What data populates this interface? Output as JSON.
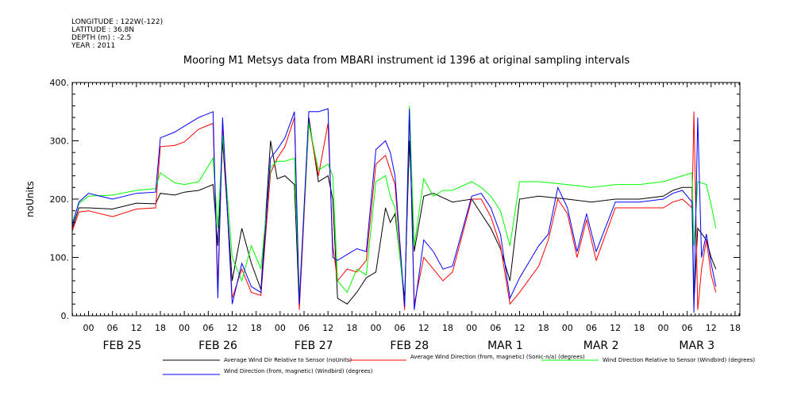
{
  "header": {
    "longitude": "LONGITUDE : 122W(-122)",
    "latitude": "LATITUDE : 36.8N",
    "depth": "DEPTH (m) : -2.5",
    "year": "YEAR : 2011"
  },
  "chart_data": {
    "type": "line",
    "title": "Mooring M1 Metsys data from MBARI instrument id 1396 at original sampling intervals",
    "xlabel": "",
    "ylabel": "noUnits",
    "ylim": [
      0,
      400
    ],
    "xlim": [
      -0.17,
      6.8
    ],
    "y_ticks": [
      0,
      100,
      200,
      300,
      400
    ],
    "y_tick_labels": [
      "0.",
      "100.",
      "200.",
      "300.",
      "400."
    ],
    "hour_labels": [
      "00",
      "06",
      "12",
      "18",
      "00",
      "06",
      "12",
      "18",
      "00",
      "06",
      "12",
      "18",
      "00",
      "06",
      "12",
      "18",
      "00",
      "06",
      "12",
      "18",
      "00",
      "06",
      "12",
      "18",
      "00",
      "06",
      "12",
      "18"
    ],
    "day_labels": [
      "FEB 25",
      "FEB 26",
      "FEB 27",
      "FEB 28",
      "MAR  1",
      "MAR  2",
      "MAR  3"
    ],
    "grid": false,
    "legend_position": "bottom",
    "x_units": "days since FEB 25 00:00 (2011)",
    "series": [
      {
        "name": "Average Wind Dir Relative to Sensor (noUnits)",
        "color": "#000000",
        "points": [
          [
            -0.17,
            150
          ],
          [
            -0.1,
            185
          ],
          [
            0,
            185
          ],
          [
            0.25,
            183
          ],
          [
            0.5,
            193
          ],
          [
            0.7,
            192
          ],
          [
            0.75,
            210
          ],
          [
            0.9,
            207
          ],
          [
            1.0,
            212
          ],
          [
            1.15,
            215
          ],
          [
            1.3,
            225
          ],
          [
            1.35,
            120
          ],
          [
            1.4,
            300
          ],
          [
            1.5,
            60
          ],
          [
            1.6,
            150
          ],
          [
            1.7,
            90
          ],
          [
            1.8,
            45
          ],
          [
            1.9,
            300
          ],
          [
            1.97,
            235
          ],
          [
            2.05,
            240
          ],
          [
            2.15,
            225
          ],
          [
            2.2,
            15
          ],
          [
            2.3,
            340
          ],
          [
            2.4,
            230
          ],
          [
            2.5,
            240
          ],
          [
            2.55,
            200
          ],
          [
            2.6,
            30
          ],
          [
            2.7,
            20
          ],
          [
            2.8,
            40
          ],
          [
            2.9,
            65
          ],
          [
            3.0,
            75
          ],
          [
            3.1,
            185
          ],
          [
            3.15,
            160
          ],
          [
            3.2,
            175
          ],
          [
            3.3,
            30
          ],
          [
            3.35,
            300
          ],
          [
            3.4,
            110
          ],
          [
            3.5,
            205
          ],
          [
            3.6,
            210
          ],
          [
            3.8,
            195
          ],
          [
            4.0,
            200
          ],
          [
            4.1,
            175
          ],
          [
            4.2,
            150
          ],
          [
            4.3,
            115
          ],
          [
            4.4,
            60
          ],
          [
            4.5,
            200
          ],
          [
            4.7,
            205
          ],
          [
            5.0,
            200
          ],
          [
            5.25,
            195
          ],
          [
            5.5,
            200
          ],
          [
            5.75,
            200
          ],
          [
            6.0,
            205
          ],
          [
            6.1,
            215
          ],
          [
            6.2,
            220
          ],
          [
            6.3,
            220
          ],
          [
            6.32,
            20
          ],
          [
            6.36,
            150
          ],
          [
            6.45,
            130
          ],
          [
            6.5,
            100
          ],
          [
            6.55,
            80
          ]
        ]
      },
      {
        "name": "Average Wind Direction (from, magnetic) (Sonic-n/a) (degrees)",
        "color": "#ff0000",
        "points": [
          [
            -0.17,
            145
          ],
          [
            -0.1,
            178
          ],
          [
            0,
            180
          ],
          [
            0.25,
            170
          ],
          [
            0.5,
            183
          ],
          [
            0.7,
            185
          ],
          [
            0.75,
            290
          ],
          [
            0.9,
            292
          ],
          [
            1.0,
            298
          ],
          [
            1.15,
            320
          ],
          [
            1.3,
            330
          ],
          [
            1.35,
            50
          ],
          [
            1.4,
            320
          ],
          [
            1.5,
            30
          ],
          [
            1.6,
            80
          ],
          [
            1.7,
            40
          ],
          [
            1.8,
            35
          ],
          [
            1.9,
            245
          ],
          [
            1.97,
            270
          ],
          [
            2.05,
            290
          ],
          [
            2.15,
            340
          ],
          [
            2.2,
            10
          ],
          [
            2.3,
            330
          ],
          [
            2.4,
            240
          ],
          [
            2.5,
            330
          ],
          [
            2.55,
            120
          ],
          [
            2.6,
            60
          ],
          [
            2.7,
            80
          ],
          [
            2.8,
            75
          ],
          [
            2.9,
            95
          ],
          [
            3.0,
            260
          ],
          [
            3.1,
            275
          ],
          [
            3.15,
            250
          ],
          [
            3.2,
            225
          ],
          [
            3.3,
            10
          ],
          [
            3.35,
            350
          ],
          [
            3.4,
            20
          ],
          [
            3.5,
            100
          ],
          [
            3.6,
            80
          ],
          [
            3.7,
            60
          ],
          [
            3.8,
            75
          ],
          [
            4.0,
            200
          ],
          [
            4.1,
            200
          ],
          [
            4.2,
            170
          ],
          [
            4.3,
            120
          ],
          [
            4.4,
            20
          ],
          [
            4.5,
            40
          ],
          [
            4.7,
            85
          ],
          [
            4.8,
            130
          ],
          [
            4.9,
            200
          ],
          [
            5.0,
            175
          ],
          [
            5.1,
            100
          ],
          [
            5.2,
            165
          ],
          [
            5.3,
            95
          ],
          [
            5.5,
            185
          ],
          [
            5.75,
            185
          ],
          [
            6.0,
            185
          ],
          [
            6.1,
            195
          ],
          [
            6.2,
            200
          ],
          [
            6.3,
            185
          ],
          [
            6.32,
            350
          ],
          [
            6.36,
            10
          ],
          [
            6.4,
            80
          ],
          [
            6.45,
            130
          ],
          [
            6.5,
            70
          ],
          [
            6.55,
            40
          ]
        ]
      },
      {
        "name": "Wind Direction Relative to Sensor (Windbird) (degrees)",
        "color": "#00ff00",
        "points": [
          [
            -0.17,
            160
          ],
          [
            -0.1,
            192
          ],
          [
            0,
            205
          ],
          [
            0.25,
            207
          ],
          [
            0.5,
            215
          ],
          [
            0.7,
            218
          ],
          [
            0.75,
            245
          ],
          [
            0.9,
            228
          ],
          [
            1.0,
            225
          ],
          [
            1.15,
            230
          ],
          [
            1.3,
            270
          ],
          [
            1.35,
            150
          ],
          [
            1.4,
            310
          ],
          [
            1.5,
            100
          ],
          [
            1.6,
            60
          ],
          [
            1.7,
            120
          ],
          [
            1.8,
            80
          ],
          [
            1.9,
            255
          ],
          [
            1.97,
            265
          ],
          [
            2.05,
            265
          ],
          [
            2.15,
            270
          ],
          [
            2.2,
            30
          ],
          [
            2.3,
            330
          ],
          [
            2.4,
            250
          ],
          [
            2.5,
            260
          ],
          [
            2.55,
            240
          ],
          [
            2.6,
            60
          ],
          [
            2.7,
            40
          ],
          [
            2.8,
            80
          ],
          [
            2.9,
            70
          ],
          [
            3.0,
            230
          ],
          [
            3.1,
            240
          ],
          [
            3.15,
            205
          ],
          [
            3.2,
            185
          ],
          [
            3.3,
            20
          ],
          [
            3.35,
            360
          ],
          [
            3.4,
            120
          ],
          [
            3.5,
            235
          ],
          [
            3.6,
            205
          ],
          [
            3.7,
            215
          ],
          [
            3.8,
            215
          ],
          [
            4.0,
            230
          ],
          [
            4.1,
            220
          ],
          [
            4.2,
            205
          ],
          [
            4.3,
            180
          ],
          [
            4.4,
            120
          ],
          [
            4.5,
            230
          ],
          [
            4.7,
            230
          ],
          [
            5.0,
            225
          ],
          [
            5.25,
            220
          ],
          [
            5.5,
            225
          ],
          [
            5.75,
            225
          ],
          [
            6.0,
            230
          ],
          [
            6.1,
            235
          ],
          [
            6.2,
            240
          ],
          [
            6.3,
            245
          ],
          [
            6.32,
            120
          ],
          [
            6.36,
            230
          ],
          [
            6.45,
            225
          ],
          [
            6.5,
            190
          ],
          [
            6.55,
            150
          ]
        ]
      },
      {
        "name": "Wind Direction (from, magnetic) (Windbird) (degrees)",
        "color": "#0000ff",
        "points": [
          [
            -0.17,
            155
          ],
          [
            -0.1,
            195
          ],
          [
            0,
            210
          ],
          [
            0.25,
            200
          ],
          [
            0.5,
            210
          ],
          [
            0.7,
            212
          ],
          [
            0.75,
            305
          ],
          [
            0.9,
            315
          ],
          [
            1.0,
            325
          ],
          [
            1.15,
            340
          ],
          [
            1.3,
            350
          ],
          [
            1.35,
            30
          ],
          [
            1.4,
            340
          ],
          [
            1.5,
            20
          ],
          [
            1.6,
            90
          ],
          [
            1.7,
            50
          ],
          [
            1.8,
            40
          ],
          [
            1.9,
            270
          ],
          [
            1.97,
            285
          ],
          [
            2.05,
            305
          ],
          [
            2.15,
            350
          ],
          [
            2.2,
            20
          ],
          [
            2.3,
            350
          ],
          [
            2.4,
            350
          ],
          [
            2.5,
            355
          ],
          [
            2.55,
            100
          ],
          [
            2.6,
            95
          ],
          [
            2.7,
            105
          ],
          [
            2.8,
            115
          ],
          [
            2.9,
            110
          ],
          [
            3.0,
            285
          ],
          [
            3.1,
            300
          ],
          [
            3.15,
            280
          ],
          [
            3.2,
            240
          ],
          [
            3.3,
            15
          ],
          [
            3.35,
            355
          ],
          [
            3.4,
            10
          ],
          [
            3.5,
            130
          ],
          [
            3.6,
            110
          ],
          [
            3.7,
            80
          ],
          [
            3.8,
            85
          ],
          [
            4.0,
            205
          ],
          [
            4.1,
            210
          ],
          [
            4.2,
            185
          ],
          [
            4.3,
            140
          ],
          [
            4.4,
            30
          ],
          [
            4.5,
            65
          ],
          [
            4.7,
            120
          ],
          [
            4.8,
            140
          ],
          [
            4.9,
            220
          ],
          [
            5.0,
            185
          ],
          [
            5.1,
            110
          ],
          [
            5.2,
            175
          ],
          [
            5.3,
            110
          ],
          [
            5.5,
            195
          ],
          [
            5.75,
            195
          ],
          [
            6.0,
            200
          ],
          [
            6.1,
            210
          ],
          [
            6.2,
            215
          ],
          [
            6.3,
            195
          ],
          [
            6.32,
            5
          ],
          [
            6.36,
            340
          ],
          [
            6.4,
            100
          ],
          [
            6.45,
            140
          ],
          [
            6.5,
            90
          ],
          [
            6.55,
            50
          ]
        ]
      }
    ]
  }
}
